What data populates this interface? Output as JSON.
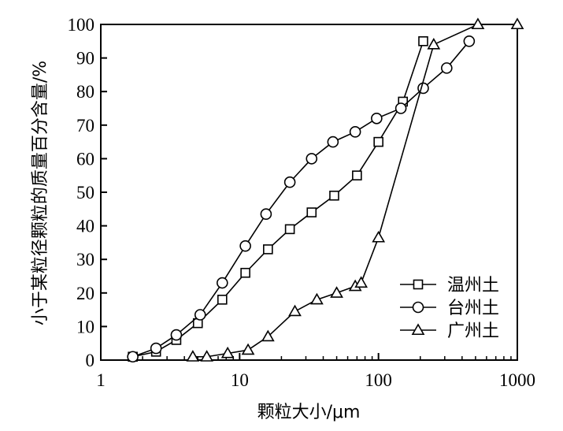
{
  "chart_data": {
    "type": "line",
    "xscale": "log",
    "xlim": [
      1,
      1000
    ],
    "ylim": [
      0,
      100
    ],
    "xticks": [
      1,
      10,
      100,
      1000
    ],
    "xtick_labels": [
      "1",
      "10",
      "100",
      "1000"
    ],
    "yticks": [
      0,
      10,
      20,
      30,
      40,
      50,
      60,
      70,
      80,
      90,
      100
    ],
    "ytick_labels": [
      "0",
      "10",
      "20",
      "30",
      "40",
      "50",
      "60",
      "70",
      "80",
      "90",
      "100"
    ],
    "xlabel": "颗粒大小/μm",
    "ylabel": "小于某粒径颗粒的质量百分含量/%",
    "grid": false,
    "legend_position": "bottom-right",
    "series": [
      {
        "name": "温州土",
        "marker": "square",
        "x": [
          1.7,
          2.5,
          3.5,
          5.0,
          7.5,
          11,
          16,
          23,
          33,
          48,
          70,
          100,
          150,
          210
        ],
        "y": [
          1,
          2.5,
          6,
          11,
          18,
          26,
          33,
          39,
          44,
          49,
          55,
          65,
          77,
          95
        ]
      },
      {
        "name": "台州土",
        "marker": "circle",
        "x": [
          1.7,
          2.5,
          3.5,
          5.2,
          7.5,
          11,
          15.5,
          23,
          33,
          47,
          68,
          97,
          145,
          210,
          310,
          450
        ],
        "y": [
          1,
          3.5,
          7.5,
          13.5,
          23,
          34,
          43.5,
          53,
          60,
          65,
          68,
          72,
          75,
          81,
          87,
          95
        ]
      },
      {
        "name": "广州土",
        "marker": "triangle",
        "x": [
          4.6,
          5.8,
          8.2,
          11.5,
          16,
          25,
          36,
          50,
          68,
          75,
          100,
          250,
          520,
          1000
        ],
        "y": [
          1,
          1,
          2,
          3,
          7,
          14.5,
          18,
          20,
          22,
          23,
          36.5,
          94,
          100,
          100
        ]
      }
    ]
  }
}
